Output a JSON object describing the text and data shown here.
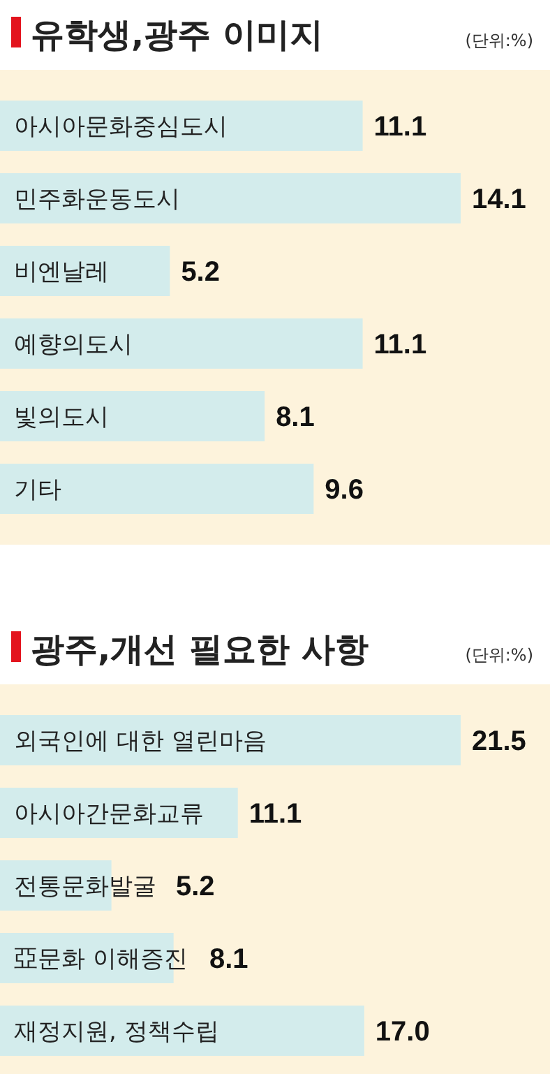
{
  "chart_data": [
    {
      "type": "bar",
      "orientation": "horizontal",
      "title": "유학생,광주  이미지",
      "subtitle": "(단위:%)",
      "categories": [
        "아시아문화중심도시",
        "민주화운동도시",
        "비엔날레",
        "예향의도시",
        "빛의도시",
        "기타"
      ],
      "values": [
        11.1,
        14.1,
        5.2,
        11.1,
        8.1,
        9.6
      ],
      "value_labels": [
        "11.1",
        "14.1",
        "5.2",
        "11.1",
        "8.1",
        "9.6"
      ],
      "color": "#d3ecec"
    },
    {
      "type": "bar",
      "orientation": "horizontal",
      "title": "광주,개선 필요한 사항",
      "subtitle": "(단위:%)",
      "categories": [
        "외국인에 대한 열린마음",
        "아시아간문화교류",
        "전통문화발굴",
        "亞문화 이해증진",
        "재정지원, 정책수립"
      ],
      "values": [
        21.5,
        11.1,
        5.2,
        8.1,
        17.0
      ],
      "value_labels": [
        "21.5",
        "11.1",
        "5.2",
        "8.1",
        "17.0"
      ],
      "color": "#d3ecec"
    }
  ]
}
